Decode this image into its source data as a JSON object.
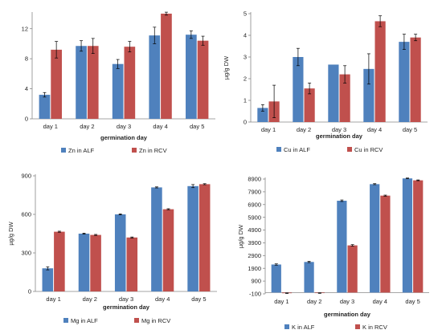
{
  "colors": {
    "alf": "#4f81bd",
    "rcv": "#c0504d"
  },
  "chart_data": [
    {
      "type": "bar",
      "categories": [
        "day 1",
        "day 2",
        "day 3",
        "day 4",
        "day 5"
      ],
      "series": [
        {
          "name": "Zn in ALF",
          "values": [
            3.2,
            9.7,
            7.3,
            11.1,
            11.2
          ],
          "errors": [
            0.3,
            0.7,
            0.6,
            1.1,
            0.5
          ]
        },
        {
          "name": "Zn in RCV",
          "values": [
            9.2,
            9.7,
            9.6,
            14.0,
            10.4
          ],
          "errors": [
            1.1,
            1.0,
            0.7,
            0.2,
            0.6
          ]
        }
      ],
      "xlabel": "germination day",
      "ylabel": "",
      "ylim": [
        0,
        14
      ],
      "yticks": [
        0,
        4,
        8,
        12
      ],
      "legend": "bottom"
    },
    {
      "type": "bar",
      "categories": [
        "day 1",
        "day 2",
        "day 3",
        "day 4",
        "day 5"
      ],
      "series": [
        {
          "name": "Cu in ALF",
          "values": [
            0.65,
            3.0,
            2.65,
            2.45,
            3.7
          ],
          "errors": [
            0.15,
            0.4,
            0.0,
            0.7,
            0.35
          ]
        },
        {
          "name": "Cu in RCV",
          "values": [
            0.95,
            1.55,
            2.2,
            4.65,
            3.9
          ],
          "errors": [
            0.75,
            0.25,
            0.4,
            0.25,
            0.15
          ]
        }
      ],
      "xlabel": "germination day",
      "ylabel": "µg/g DW",
      "ylim": [
        0,
        5
      ],
      "yticks": [
        0,
        1,
        2,
        3,
        4,
        5
      ],
      "legend": "bottom"
    },
    {
      "type": "bar",
      "categories": [
        "day 1",
        "day 2",
        "day 3",
        "day 4",
        "day 5"
      ],
      "series": [
        {
          "name": "Mg in ALF",
          "values": [
            180,
            450,
            600,
            810,
            820
          ],
          "errors": [
            12,
            4,
            4,
            4,
            12
          ]
        },
        {
          "name": "Mg in RCV",
          "values": [
            465,
            440,
            420,
            640,
            835
          ],
          "errors": [
            4,
            4,
            4,
            4,
            4
          ]
        }
      ],
      "xlabel": "germination day",
      "ylabel": "µg/g DW",
      "ylim": [
        0,
        900
      ],
      "yticks": [
        0,
        300,
        600,
        900
      ],
      "legend": "bottom"
    },
    {
      "type": "bar",
      "categories": [
        "day 1",
        "day 2",
        "day 3",
        "day 4",
        "day 5"
      ],
      "series": [
        {
          "name": "K in ALF",
          "values": [
            2200,
            2400,
            7200,
            8500,
            8950
          ],
          "errors": [
            50,
            50,
            60,
            40,
            30
          ]
        },
        {
          "name": "K in RCV",
          "values": [
            -50,
            -40,
            3700,
            7600,
            8800
          ],
          "errors": [
            20,
            20,
            60,
            40,
            30
          ]
        }
      ],
      "xlabel": "germination day",
      "ylabel": "µg/g DW",
      "ylim": [
        -100,
        8900
      ],
      "yticks": [
        -100,
        900,
        1900,
        2900,
        3900,
        4900,
        5900,
        6900,
        7900,
        8900
      ],
      "legend": "bottom"
    }
  ]
}
